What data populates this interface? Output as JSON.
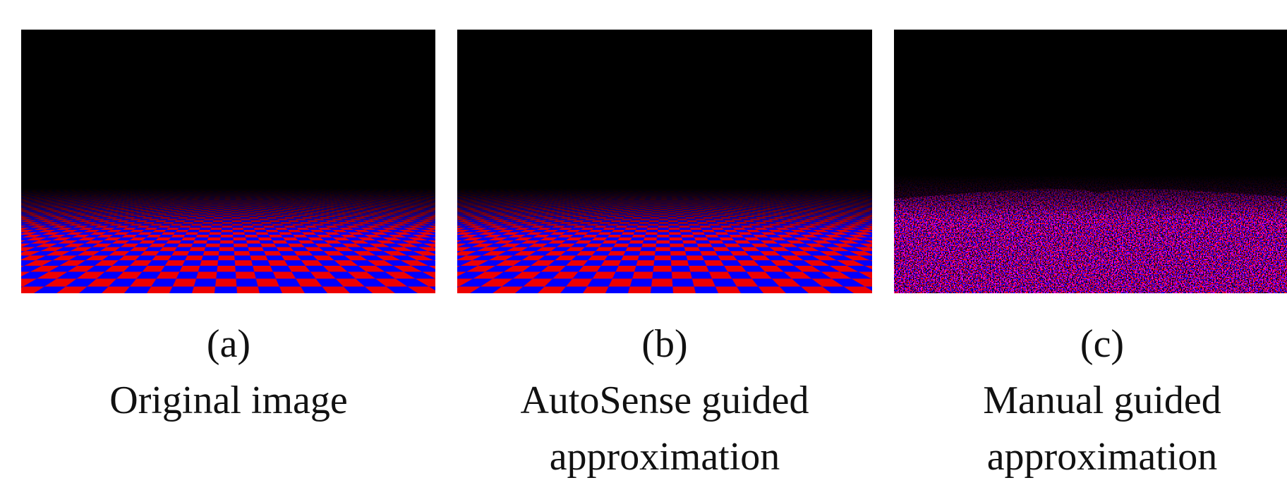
{
  "panels": [
    {
      "label": "(a)",
      "caption": "Original image"
    },
    {
      "label": "(b)",
      "caption": "AutoSense guided approximation"
    },
    {
      "label": "(c)",
      "caption": "Manual guided approximation"
    }
  ]
}
